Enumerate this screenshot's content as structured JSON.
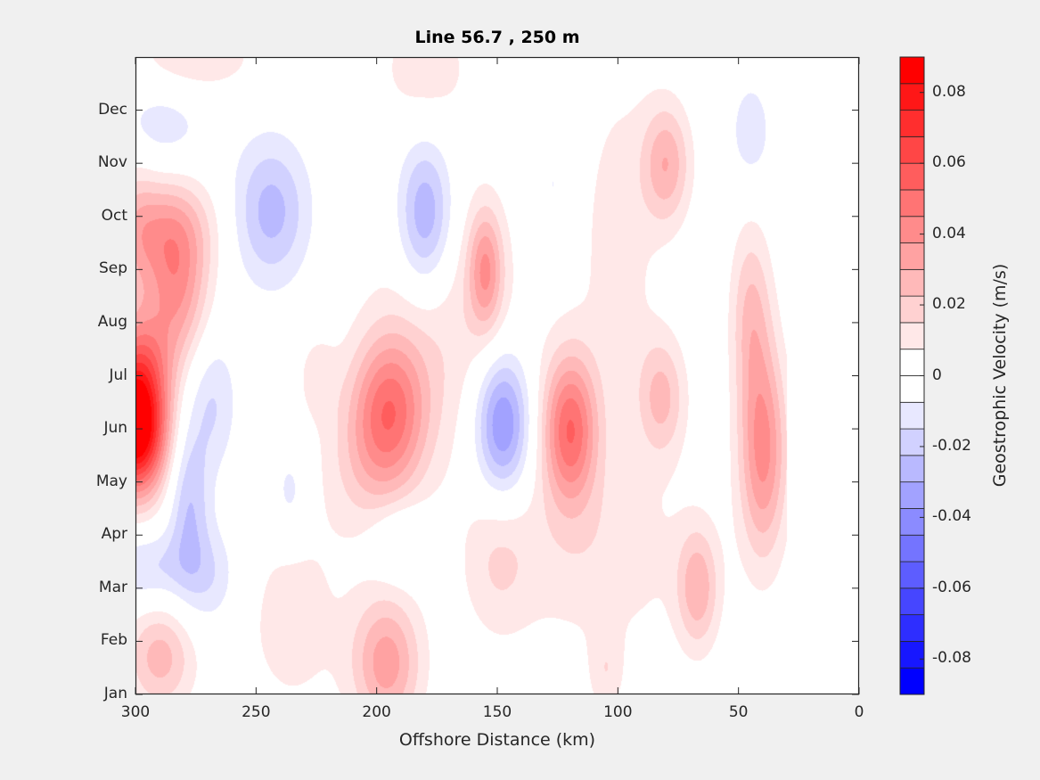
{
  "chart_data": {
    "type": "heatmap",
    "subtype": "filled-contour",
    "title": "Line 56.7 , 250 m",
    "xlabel": "Offshore Distance (km)",
    "ylabel": "",
    "xlim": [
      300,
      0
    ],
    "x_reversed": true,
    "ylim": [
      1,
      13
    ],
    "x_ticks": [
      300,
      250,
      200,
      150,
      100,
      50,
      0
    ],
    "x_tick_labels": [
      "300",
      "250",
      "200",
      "150",
      "100",
      "50",
      "0"
    ],
    "y_ticks": [
      1,
      2,
      3,
      4,
      5,
      6,
      7,
      8,
      9,
      10,
      11,
      12
    ],
    "y_tick_labels": [
      "Jan",
      "Feb",
      "Mar",
      "Apr",
      "May",
      "Jun",
      "Jul",
      "Aug",
      "Sep",
      "Oct",
      "Nov",
      "Dec"
    ],
    "data_x_range_km": [
      300,
      30
    ],
    "colorbar": {
      "label": "Geostrophic Velocity (m/s)",
      "range": [
        -0.09,
        0.09
      ],
      "levels": 24,
      "ticks": [
        0.08,
        0.06,
        0.04,
        0.02,
        0,
        -0.02,
        -0.04,
        -0.06,
        -0.08
      ],
      "tick_labels": [
        "0.08",
        "0.06",
        "0.04",
        "0.02",
        "0",
        "-0.02",
        "-0.04",
        "-0.06",
        "-0.08"
      ],
      "positive_color": "#ff0000",
      "negative_color": "#0000ff",
      "zero_color": "#ffffff"
    },
    "features": [
      {
        "km": 300,
        "month": 6.0,
        "amp": 0.1,
        "sd_km": 9,
        "sd_month": 0.85
      },
      {
        "km": 298,
        "month": 7.3,
        "amp": 0.03,
        "sd_km": 10,
        "sd_month": 0.7
      },
      {
        "km": 283,
        "month": 8.6,
        "amp": 0.034,
        "sd_km": 9,
        "sd_month": 0.9
      },
      {
        "km": 288,
        "month": 9.8,
        "amp": 0.028,
        "sd_km": 14,
        "sd_month": 0.7
      },
      {
        "km": 300,
        "month": 9.5,
        "amp": 0.012,
        "sd_km": 6,
        "sd_month": 1.2
      },
      {
        "km": 278,
        "month": 4.6,
        "amp": -0.022,
        "sd_km": 6,
        "sd_month": 1.1
      },
      {
        "km": 268,
        "month": 6.5,
        "amp": -0.015,
        "sd_km": 7,
        "sd_month": 0.9
      },
      {
        "km": 295,
        "month": 3.4,
        "amp": -0.016,
        "sd_km": 14,
        "sd_month": 0.5
      },
      {
        "km": 268,
        "month": 3.2,
        "amp": -0.012,
        "sd_km": 8,
        "sd_month": 0.7
      },
      {
        "km": 244,
        "month": 10.1,
        "amp": -0.026,
        "sd_km": 11,
        "sd_month": 0.95
      },
      {
        "km": 180,
        "month": 10.0,
        "amp": -0.033,
        "sd_km": 8,
        "sd_month": 1.0
      },
      {
        "km": 155,
        "month": 9.0,
        "amp": 0.032,
        "sd_km": 5,
        "sd_month": 0.8
      },
      {
        "km": 195,
        "month": 6.4,
        "amp": 0.042,
        "sd_km": 11,
        "sd_month": 1.0
      },
      {
        "km": 203,
        "month": 5.3,
        "amp": 0.015,
        "sd_km": 14,
        "sd_month": 1.0
      },
      {
        "km": 148,
        "month": 6.1,
        "amp": -0.042,
        "sd_km": 8,
        "sd_month": 0.95
      },
      {
        "km": 120,
        "month": 6.0,
        "amp": 0.05,
        "sd_km": 8,
        "sd_month": 1.0
      },
      {
        "km": 82,
        "month": 6.6,
        "amp": 0.024,
        "sd_km": 7,
        "sd_month": 0.8
      },
      {
        "km": 40,
        "month": 5.6,
        "amp": 0.04,
        "sd_km": 7,
        "sd_month": 1.4
      },
      {
        "km": 45,
        "month": 8.2,
        "amp": 0.022,
        "sd_km": 6,
        "sd_month": 1.2
      },
      {
        "km": 80,
        "month": 11.0,
        "amp": 0.028,
        "sd_km": 7,
        "sd_month": 0.8
      },
      {
        "km": 45,
        "month": 11.6,
        "amp": -0.013,
        "sd_km": 6,
        "sd_month": 0.7
      },
      {
        "km": 67,
        "month": 3.0,
        "amp": 0.026,
        "sd_km": 6,
        "sd_month": 0.8
      },
      {
        "km": 196,
        "month": 1.6,
        "amp": 0.034,
        "sd_km": 10,
        "sd_month": 0.9
      },
      {
        "km": 290,
        "month": 1.7,
        "amp": 0.026,
        "sd_km": 10,
        "sd_month": 0.7
      },
      {
        "km": 190,
        "month": 3.9,
        "amp": -0.014,
        "sd_km": 9,
        "sd_month": 0.5
      },
      {
        "km": 236,
        "month": 4.8,
        "amp": -0.012,
        "sd_km": 5,
        "sd_month": 0.6
      },
      {
        "km": 170,
        "month": 8.0,
        "amp": 0.013,
        "sd_km": 22,
        "sd_month": 1.8
      },
      {
        "km": 110,
        "month": 3.6,
        "amp": 0.012,
        "sd_km": 30,
        "sd_month": 1.3
      },
      {
        "km": 150,
        "month": 3.5,
        "amp": 0.012,
        "sd_km": 10,
        "sd_month": 1.0
      },
      {
        "km": 235,
        "month": 2.4,
        "amp": 0.011,
        "sd_km": 16,
        "sd_month": 1.4
      },
      {
        "km": 100,
        "month": 9.5,
        "amp": 0.011,
        "sd_km": 12,
        "sd_month": 2.5
      },
      {
        "km": 290,
        "month": 11.7,
        "amp": -0.012,
        "sd_km": 14,
        "sd_month": 0.6
      },
      {
        "km": 275,
        "month": 13.0,
        "amp": 0.014,
        "sd_km": 18,
        "sd_month": 0.5
      },
      {
        "km": 180,
        "month": 12.8,
        "amp": 0.012,
        "sd_km": 14,
        "sd_month": 0.8
      },
      {
        "km": 105,
        "month": 1.4,
        "amp": 0.012,
        "sd_km": 5,
        "sd_month": 0.6
      },
      {
        "km": 127,
        "month": 10.6,
        "amp": -0.009,
        "sd_km": 3,
        "sd_month": 0.5
      },
      {
        "km": 225,
        "month": 7.0,
        "amp": 0.01,
        "sd_km": 6,
        "sd_month": 0.6
      }
    ]
  }
}
